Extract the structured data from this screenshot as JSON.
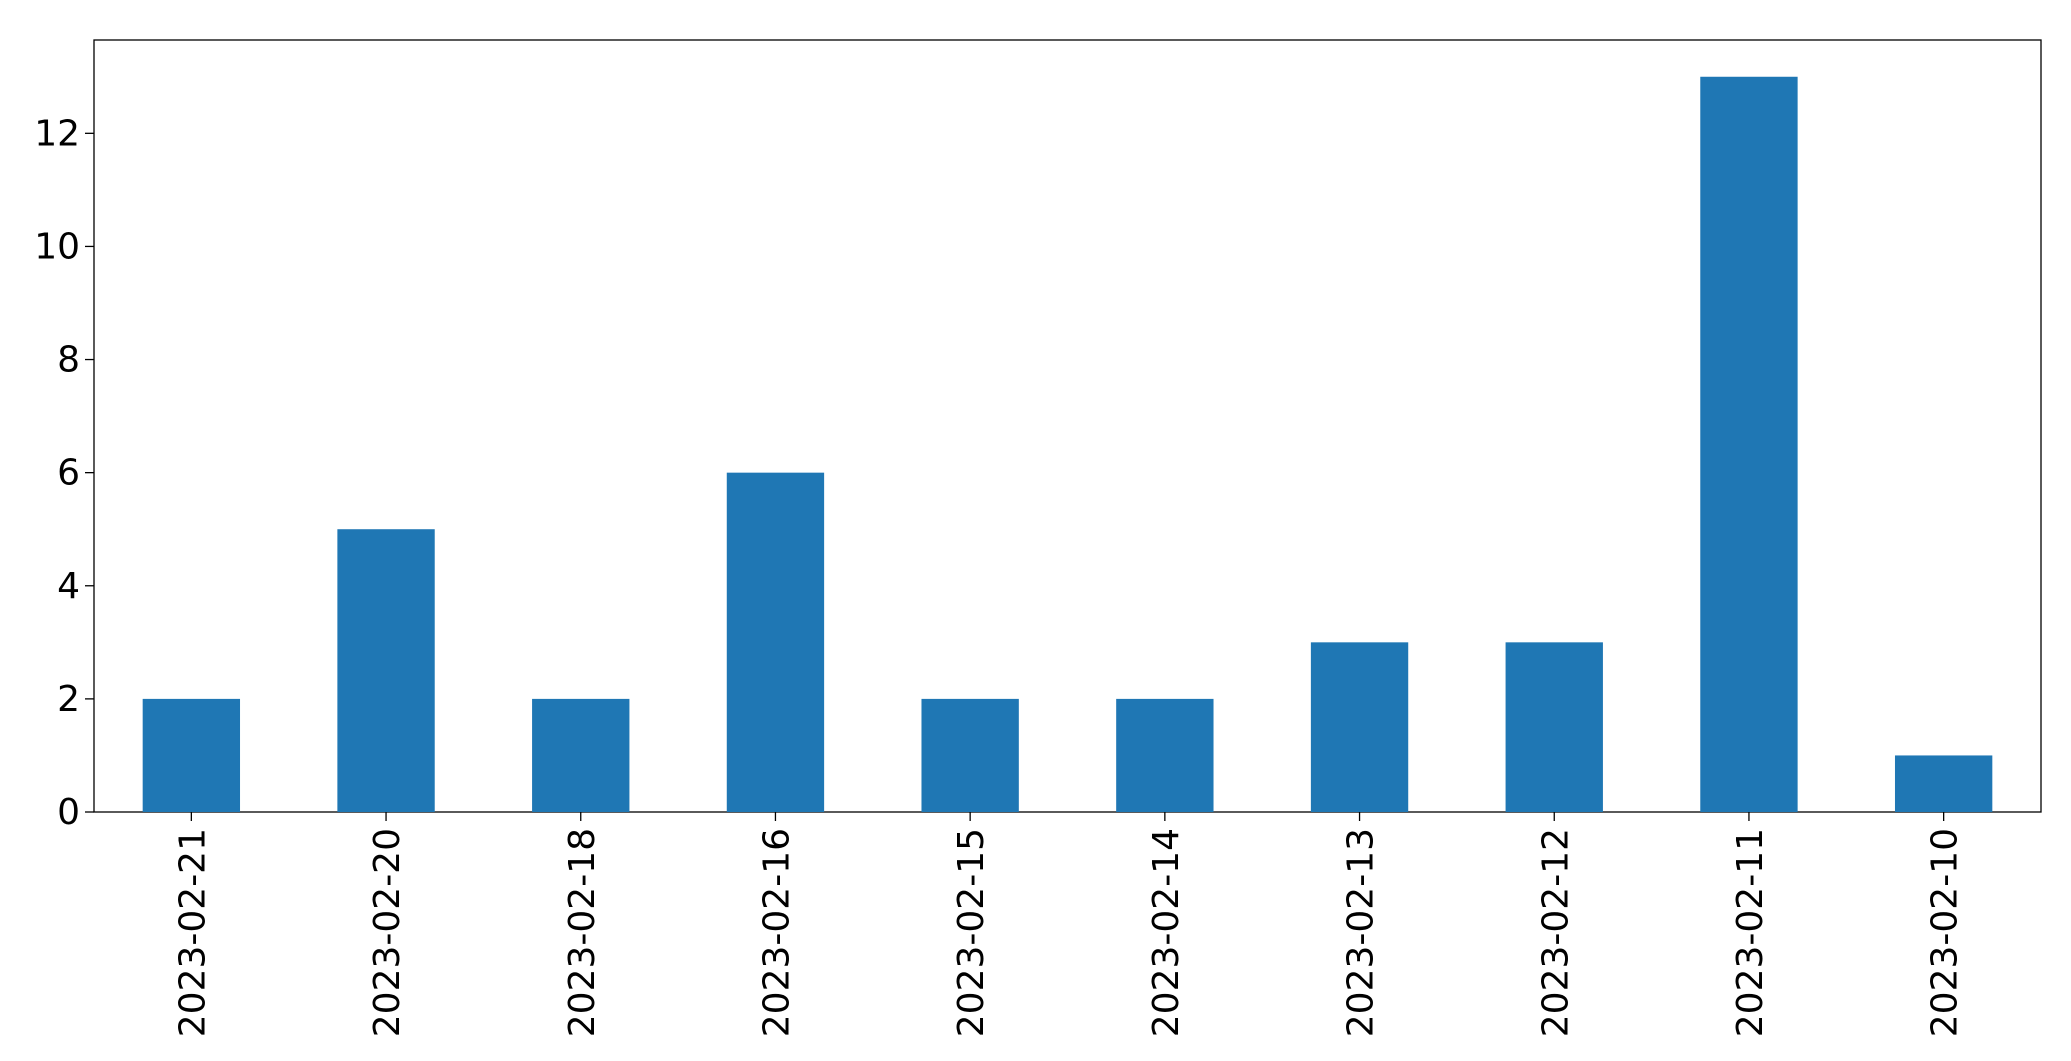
{
  "chart_data": {
    "type": "bar",
    "categories": [
      "2023-02-21",
      "2023-02-20",
      "2023-02-18",
      "2023-02-16",
      "2023-02-15",
      "2023-02-14",
      "2023-02-13",
      "2023-02-12",
      "2023-02-11",
      "2023-02-10"
    ],
    "values": [
      2,
      5,
      2,
      6,
      2,
      2,
      3,
      3,
      13,
      1
    ],
    "color": "#1f77b4",
    "ylim": [
      0,
      13.65
    ],
    "yticks": [
      0,
      2,
      4,
      6,
      8,
      10,
      12
    ],
    "grid": false
  }
}
